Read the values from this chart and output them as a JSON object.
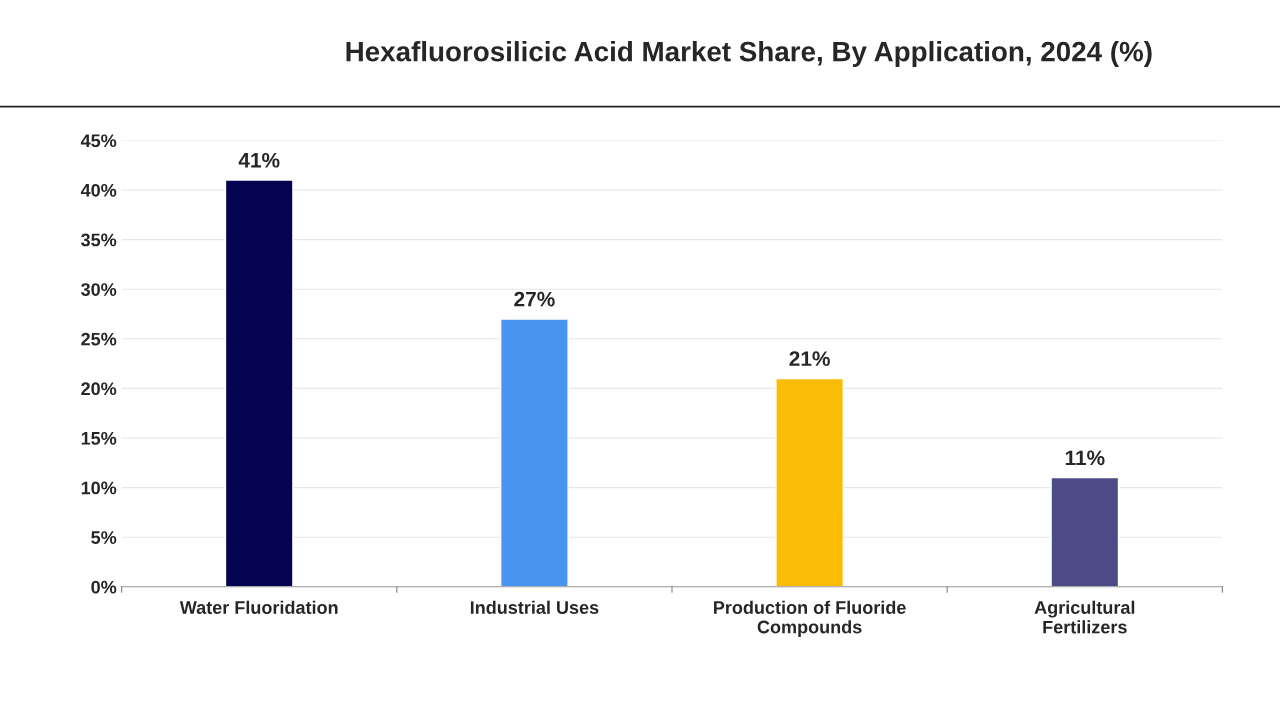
{
  "chart_data": {
    "type": "bar",
    "title": "Hexafluorosilicic Acid Market Share, By Application, 2024 (%)",
    "categories": [
      "Water Fluoridation",
      "Industrial Uses",
      "Production of Fluoride Compounds",
      "Agricultural Fertilizers"
    ],
    "values": [
      41,
      27,
      21,
      11
    ],
    "colors": [
      "#03034f",
      "#4895ef",
      "#fbbc05",
      "#4c4b85"
    ],
    "value_labels": [
      "41%",
      "27%",
      "21%",
      "11%"
    ],
    "ylim": [
      0,
      45
    ],
    "yticks": [
      {
        "value": 0,
        "label": "0%"
      },
      {
        "value": 5,
        "label": "5%"
      },
      {
        "value": 10,
        "label": "10%"
      },
      {
        "value": 15,
        "label": "15%"
      },
      {
        "value": 20,
        "label": "20%"
      },
      {
        "value": 25,
        "label": "25%"
      },
      {
        "value": 30,
        "label": "30%"
      },
      {
        "value": 35,
        "label": "35%"
      },
      {
        "value": 40,
        "label": "40%"
      },
      {
        "value": 45,
        "label": "45%"
      }
    ],
    "grid": "y"
  }
}
